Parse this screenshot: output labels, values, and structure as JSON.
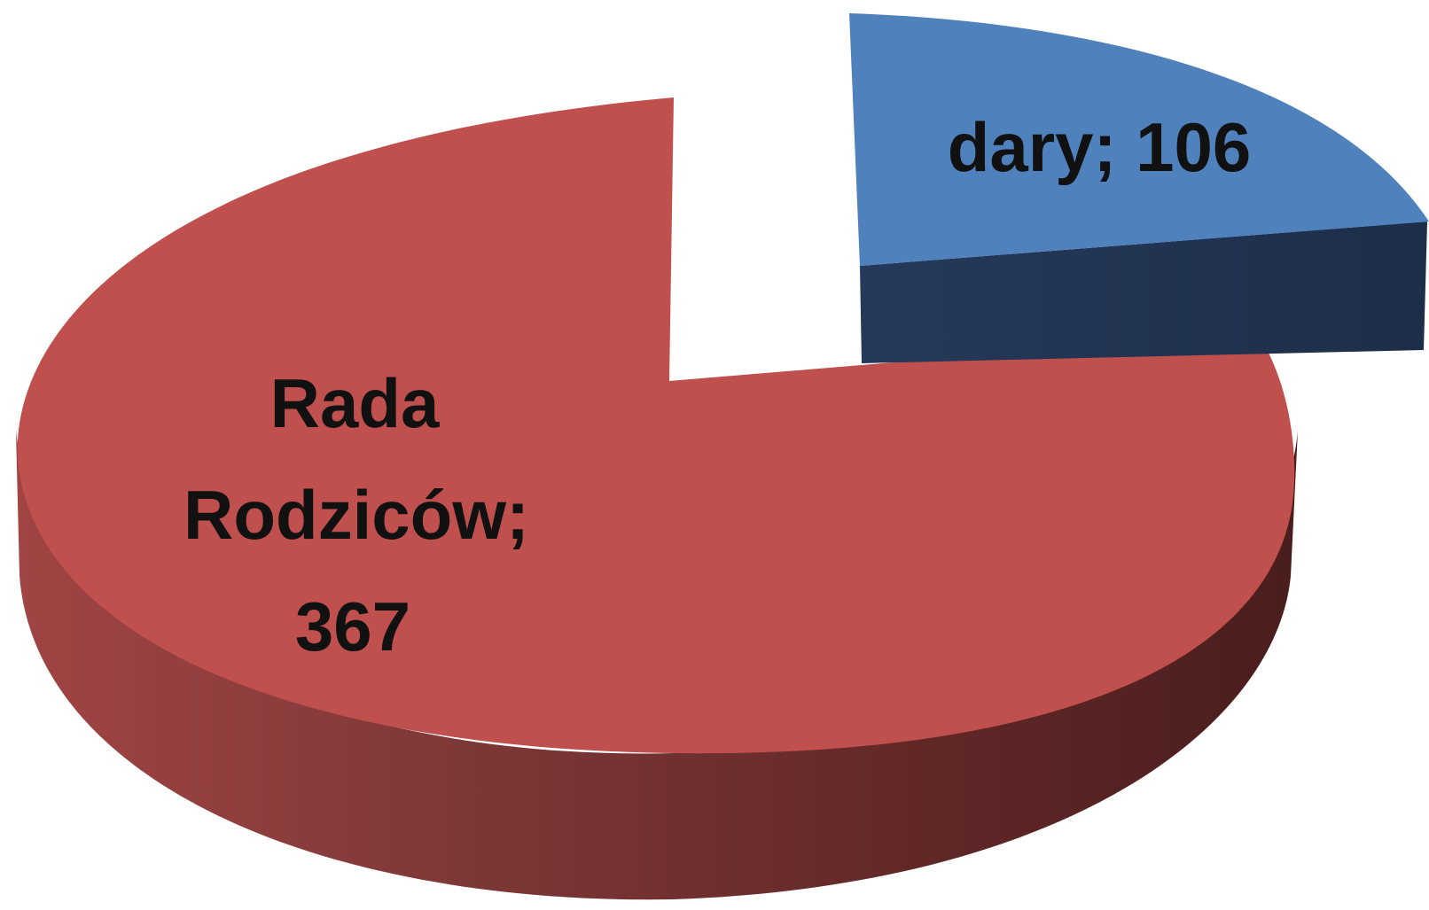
{
  "chart_data": {
    "type": "pie",
    "style": "3d-exploded",
    "slices": [
      {
        "label": "dary",
        "value": 106,
        "display": "dary; 106",
        "color": "#4F81BD",
        "side_color": "#22344F"
      },
      {
        "label": "Rada Rodziców",
        "value": 367,
        "display_lines": [
          "Rada",
          "Rodziców;",
          "367"
        ],
        "color": "#C0504D",
        "side_color": "#8B3636"
      }
    ],
    "legend": "none"
  }
}
